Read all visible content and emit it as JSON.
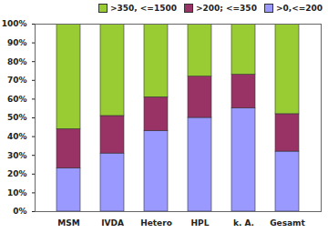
{
  "chart_data": {
    "type": "bar",
    "stacked": true,
    "legend": "top-right",
    "grid": false,
    "categories": [
      "MSM",
      "IVDA",
      "Hetero",
      "HPL",
      "k. A.",
      "Gesamt"
    ],
    "series": [
      {
        "name": ">0,<=200",
        "color": "#9999ff",
        "values": [
          23,
          31,
          43,
          50,
          55,
          32
        ]
      },
      {
        "name": ">200; <=350",
        "color": "#993366",
        "values": [
          21,
          20,
          18,
          22,
          18,
          20
        ]
      },
      {
        "name": ">350, <=1500",
        "color": "#99cc33",
        "values": [
          56,
          49,
          39,
          28,
          27,
          48
        ]
      }
    ],
    "ylim": [
      0,
      100
    ],
    "yticks": [
      {
        "value": 0,
        "label": "0%"
      },
      {
        "value": 10,
        "label": "10%"
      },
      {
        "value": 20,
        "label": "20%"
      },
      {
        "value": 30,
        "label": "30%"
      },
      {
        "value": 40,
        "label": "40%"
      },
      {
        "value": 50,
        "label": "50%"
      },
      {
        "value": 60,
        "label": "60%"
      },
      {
        "value": 70,
        "label": "70%"
      },
      {
        "value": 80,
        "label": "80%"
      },
      {
        "value": 90,
        "label": "90%"
      },
      {
        "value": 100,
        "label": "100%"
      }
    ]
  }
}
